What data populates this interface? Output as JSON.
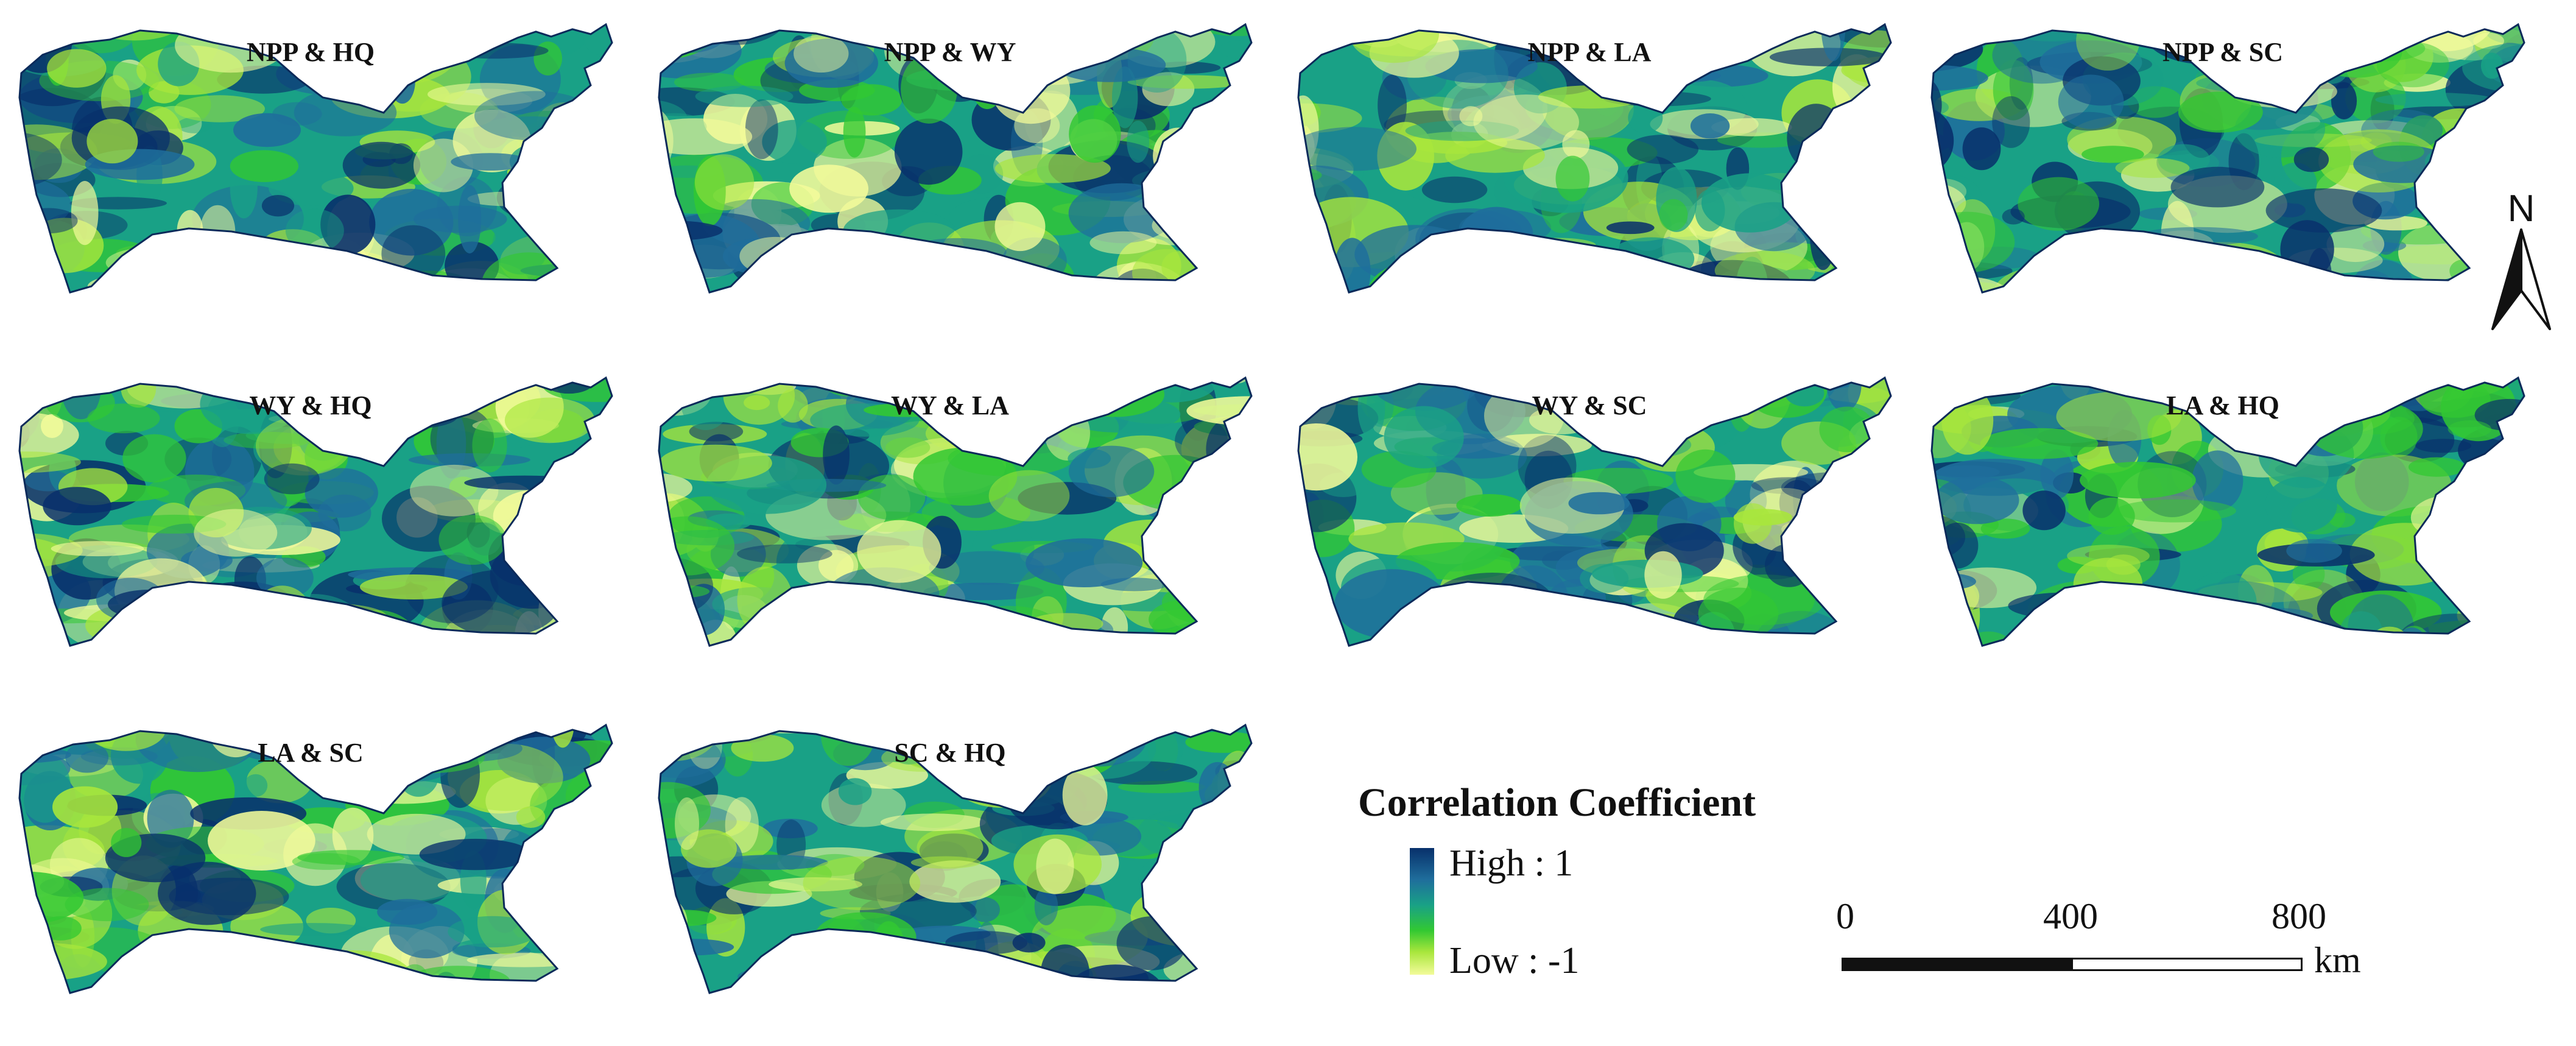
{
  "panels": [
    {
      "title": "NPP & HQ"
    },
    {
      "title": "NPP & WY"
    },
    {
      "title": "NPP & LA"
    },
    {
      "title": "NPP & SC"
    },
    {
      "title": "WY & HQ"
    },
    {
      "title": "WY & LA"
    },
    {
      "title": "WY & SC"
    },
    {
      "title": "LA & HQ"
    },
    {
      "title": "LA & SC"
    },
    {
      "title": "SC & HQ"
    }
  ],
  "legend": {
    "title": "Correlation Coefficient",
    "high_label": "High : 1",
    "low_label": "Low : -1",
    "colors": [
      "#08306b",
      "#1f6e9c",
      "#19a186",
      "#32c832",
      "#a8e63c",
      "#f3fb9a"
    ]
  },
  "scale_bar": {
    "labels": [
      "0",
      "400",
      "800"
    ],
    "unit": "km"
  },
  "north_arrow": {
    "label": "N",
    "icon": "north-arrow-icon"
  }
}
